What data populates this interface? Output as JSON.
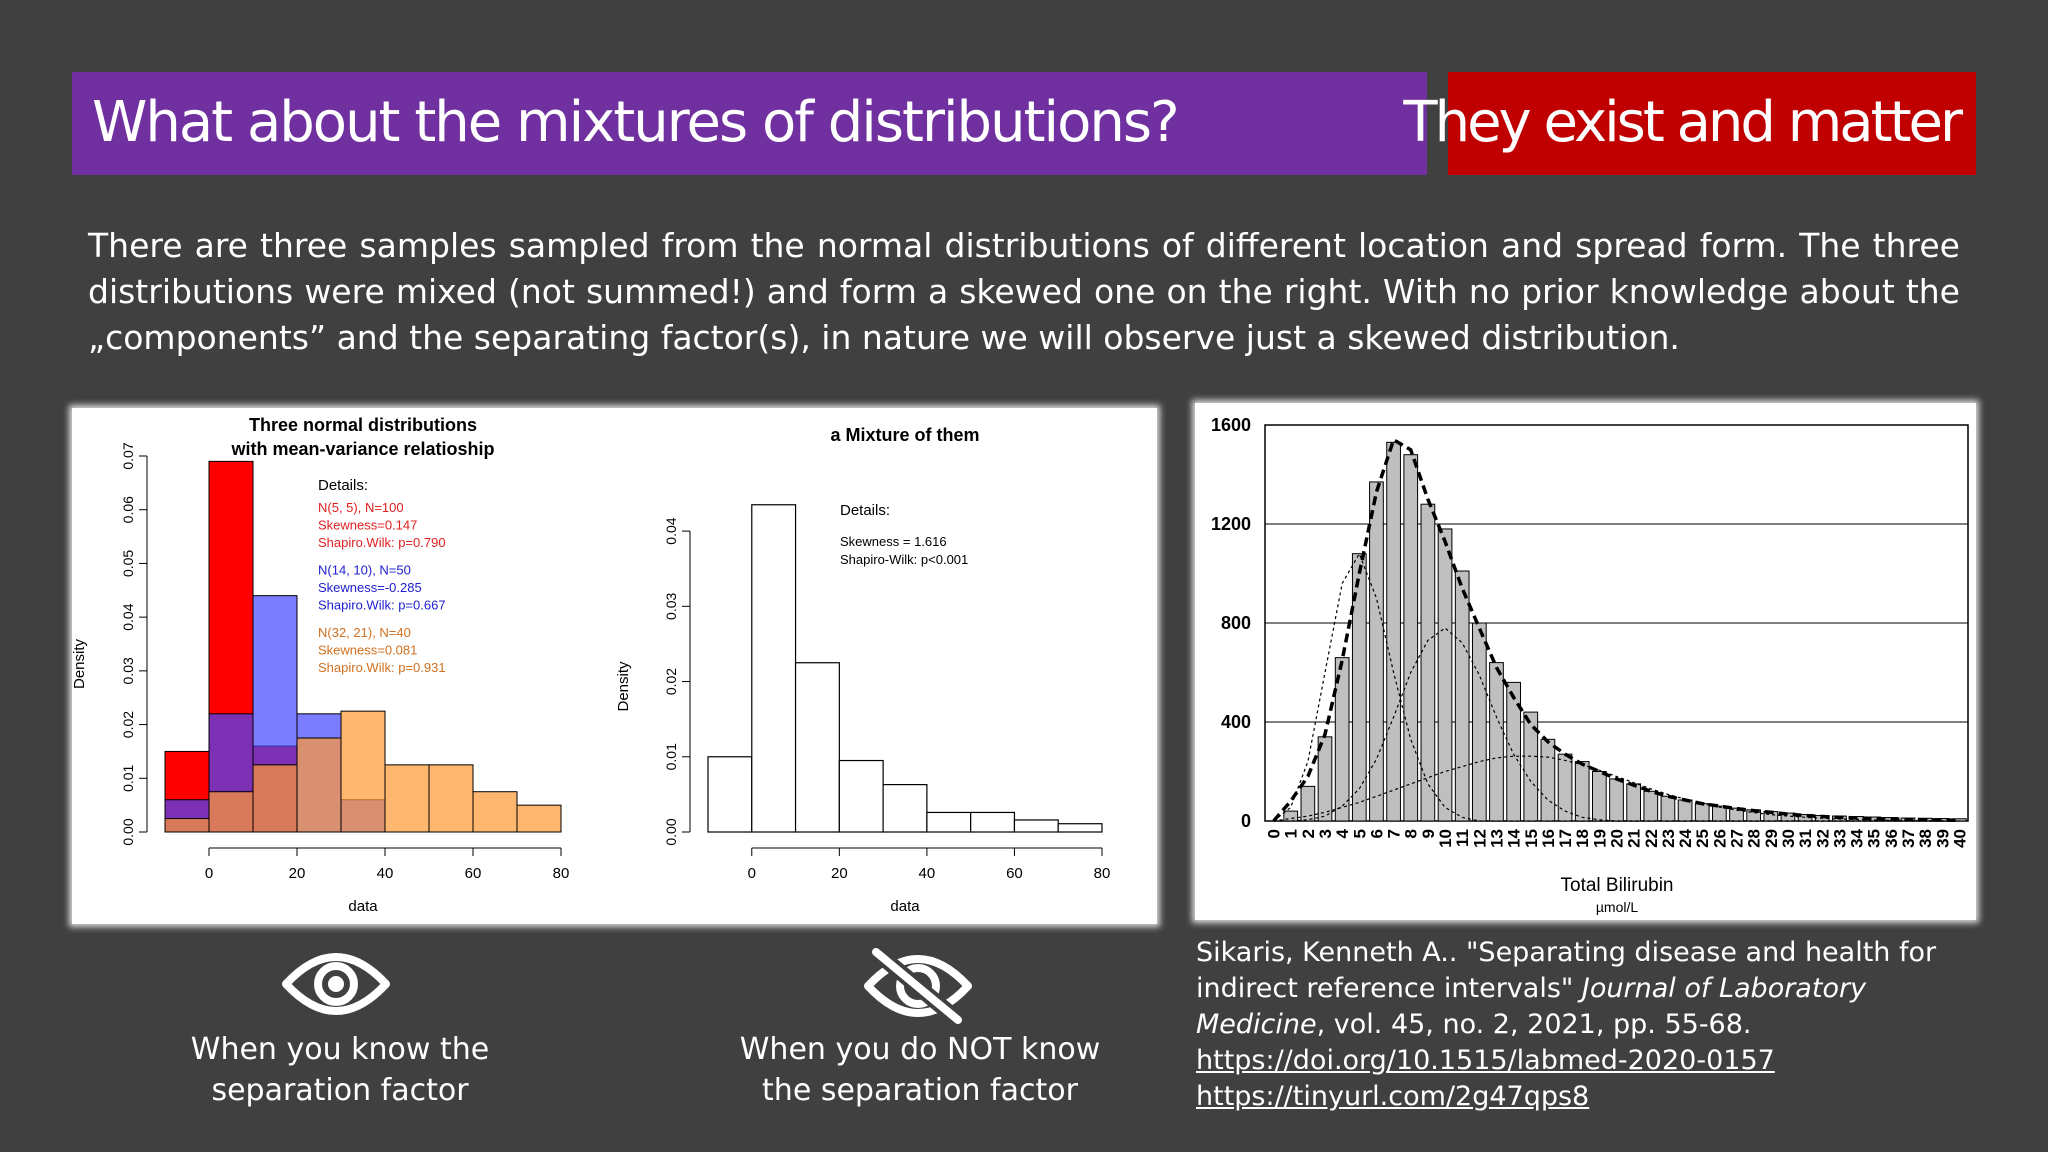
{
  "header": {
    "title": "What about the mixtures of distributions?",
    "badge": "They exist and matter"
  },
  "intro_text": "There are three samples sampled from the normal distributions of different location and spread form. The three distributions were mixed (not summed!) and form a skewed one on the right. With no prior knowledge about the „components” and the separating factor(s), in nature we will observe just a skewed distribution.",
  "chart_data": [
    {
      "type": "bar",
      "title": "Three normal distributions\nwith mean-variance relatioship",
      "title_lines": [
        "Three normal distributions",
        "with mean-variance relatioship"
      ],
      "xlabel": "data",
      "ylabel": "Density",
      "xlim": [
        -10,
        80
      ],
      "ylim": [
        0,
        0.07
      ],
      "x_ticks": [
        "0",
        "20",
        "40",
        "60",
        "80"
      ],
      "y_ticks": [
        "0.00",
        "0.01",
        "0.02",
        "0.03",
        "0.04",
        "0.05",
        "0.06",
        "0.07"
      ],
      "bin_edges": [
        -10,
        0,
        10,
        20,
        30,
        40,
        50,
        60,
        70,
        80
      ],
      "series": [
        {
          "name": "N(5, 5), N=100",
          "color": "#ff0000",
          "values": [
            0.015,
            0.069,
            0.016,
            0,
            0,
            0,
            0,
            0,
            0
          ]
        },
        {
          "name": "N(14, 10), N=50",
          "color": "#4444ff",
          "values": [
            0.006,
            0.022,
            0.044,
            0.022,
            0.006,
            0,
            0,
            0,
            0
          ]
        },
        {
          "name": "N(32, 21), N=40",
          "color": "#ff9933",
          "values": [
            0.0025,
            0.0075,
            0.0125,
            0.0175,
            0.0225,
            0.0125,
            0.0125,
            0.0075,
            0.005
          ]
        }
      ],
      "annotation": {
        "heading": "Details:",
        "groups": [
          {
            "color": "#e02020",
            "lines": [
              "N(5, 5), N=100",
              "Skewness=0.147",
              "Shapiro.Wilk: p=0.790"
            ]
          },
          {
            "color": "#2020d0",
            "lines": [
              "N(14, 10), N=50",
              "Skewness=-0.285",
              "Shapiro.Wilk: p=0.667"
            ]
          },
          {
            "color": "#d07020",
            "lines": [
              "N(32, 21), N=40",
              "Skewness=0.081",
              "Shapiro.Wilk: p=0.931"
            ]
          }
        ]
      }
    },
    {
      "type": "bar",
      "title": "a Mixture of them",
      "xlabel": "data",
      "ylabel": "Density",
      "xlim": [
        -10,
        80
      ],
      "ylim": [
        0,
        0.044
      ],
      "x_ticks": [
        "0",
        "20",
        "40",
        "60",
        "80"
      ],
      "y_ticks": [
        "0.00",
        "0.01",
        "0.02",
        "0.03",
        "0.04"
      ],
      "bin_edges": [
        -10,
        0,
        10,
        20,
        30,
        40,
        50,
        60,
        70,
        80
      ],
      "values": [
        0.01,
        0.0435,
        0.0225,
        0.0095,
        0.0063,
        0.0026,
        0.0026,
        0.0016,
        0.0011
      ],
      "annotation": {
        "heading": "Details:",
        "lines": [
          "Skewness = 1.616",
          "Shapiro-Wilk: p<0.001"
        ]
      }
    },
    {
      "type": "bar",
      "xlabel": "Total Bilirubin",
      "xunit": "µmol/L",
      "ylim": [
        0,
        1600
      ],
      "y_ticks": [
        "0",
        "400",
        "800",
        "1200",
        "1600"
      ],
      "categories": [
        "0",
        "1",
        "2",
        "3",
        "4",
        "5",
        "6",
        "7",
        "8",
        "9",
        "10",
        "11",
        "12",
        "13",
        "14",
        "15",
        "16",
        "17",
        "18",
        "19",
        "20",
        "21",
        "22",
        "23",
        "24",
        "25",
        "26",
        "27",
        "28",
        "29",
        "30",
        "31",
        "32",
        "33",
        "34",
        "35",
        "36",
        "37",
        "38",
        "39",
        "40"
      ],
      "values": [
        0,
        40,
        140,
        340,
        660,
        1080,
        1370,
        1530,
        1480,
        1280,
        1180,
        1010,
        800,
        640,
        560,
        440,
        330,
        270,
        240,
        200,
        170,
        150,
        120,
        100,
        85,
        70,
        60,
        52,
        45,
        38,
        32,
        26,
        22,
        20,
        18,
        16,
        14,
        12,
        11,
        10,
        9
      ],
      "fitted_curves": {
        "mixture": [
          0,
          80,
          180,
          350,
          650,
          1000,
          1330,
          1540,
          1500,
          1300,
          1130,
          940,
          780,
          620,
          500,
          390,
          320,
          270,
          230,
          200,
          170,
          145,
          120,
          100,
          85,
          70,
          60,
          50,
          42,
          35,
          28,
          22,
          18,
          15,
          12,
          10,
          8,
          6,
          5,
          4,
          3
        ],
        "components": [
          [
            0,
            55,
            240,
            600,
            960,
            1080,
            900,
            600,
            330,
            150,
            55,
            15,
            0,
            0,
            0,
            0,
            0,
            0,
            0,
            0,
            0,
            0,
            0,
            0,
            0,
            0,
            0,
            0,
            0,
            0,
            0,
            0,
            0,
            0,
            0,
            0,
            0,
            0,
            0,
            0,
            0
          ],
          [
            0,
            0,
            5,
            20,
            60,
            130,
            250,
            420,
            600,
            730,
            780,
            720,
            590,
            420,
            270,
            160,
            85,
            40,
            15,
            5,
            0,
            0,
            0,
            0,
            0,
            0,
            0,
            0,
            0,
            0,
            0,
            0,
            0,
            0,
            0,
            0,
            0,
            0,
            0,
            0,
            0
          ],
          [
            0,
            10,
            20,
            35,
            55,
            75,
            100,
            125,
            150,
            175,
            200,
            220,
            240,
            255,
            262,
            262,
            258,
            245,
            228,
            205,
            180,
            155,
            130,
            108,
            88,
            70,
            56,
            44,
            34,
            26,
            20,
            15,
            11,
            8,
            6,
            4,
            3,
            2,
            1,
            1,
            0
          ]
        ]
      }
    }
  ],
  "captions": {
    "known": [
      "When you know the",
      "separation factor"
    ],
    "unknown": [
      "When you do NOT know",
      "the separation factor"
    ]
  },
  "icons": {
    "known": "eye-icon",
    "unknown": "eye-slash-icon"
  },
  "citation": {
    "authors": "Sikaris, Kenneth A.. ",
    "article": "\"Separating disease and health for indirect reference intervals\"",
    "journal": "Journal of Laboratory Medicine",
    "details": ", vol. 45, no. 2, 2021, pp. 55-68. ",
    "doi": "https://doi.org/10.1515/labmed-2020-0157",
    "tinyurl": "https://tinyurl.com/2g47qps8"
  }
}
